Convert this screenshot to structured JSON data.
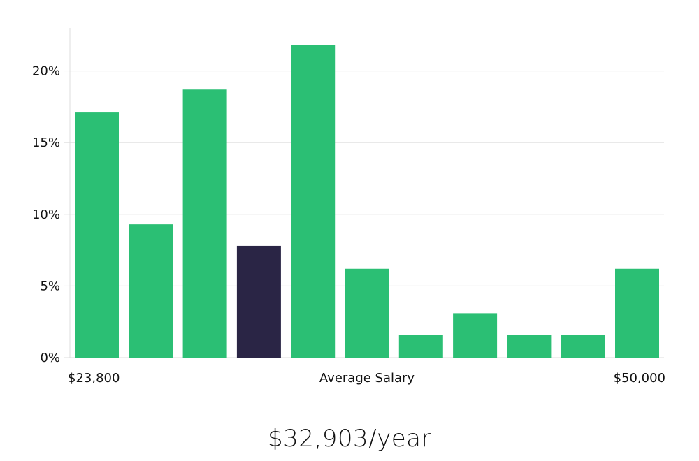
{
  "chart_data": {
    "type": "bar",
    "title": "$32,903/year",
    "xlabel": "Average Salary",
    "x_range_labels": [
      "$23,800",
      "$50,000"
    ],
    "ylabel": "",
    "ylim": [
      0,
      23
    ],
    "yticks": [
      0,
      5,
      10,
      15,
      20
    ],
    "ytick_labels": [
      "0%",
      "5%",
      "10%",
      "15%",
      "20%"
    ],
    "values": [
      17.1,
      9.3,
      18.7,
      7.8,
      21.8,
      6.2,
      1.6,
      3.1,
      1.6,
      1.6,
      6.2
    ],
    "highlight_index": 3,
    "grid": true,
    "colors": {
      "bar": "#2bbf74",
      "highlight": "#2a2545",
      "grid": "#dcdcdc",
      "text": "#111111"
    }
  }
}
